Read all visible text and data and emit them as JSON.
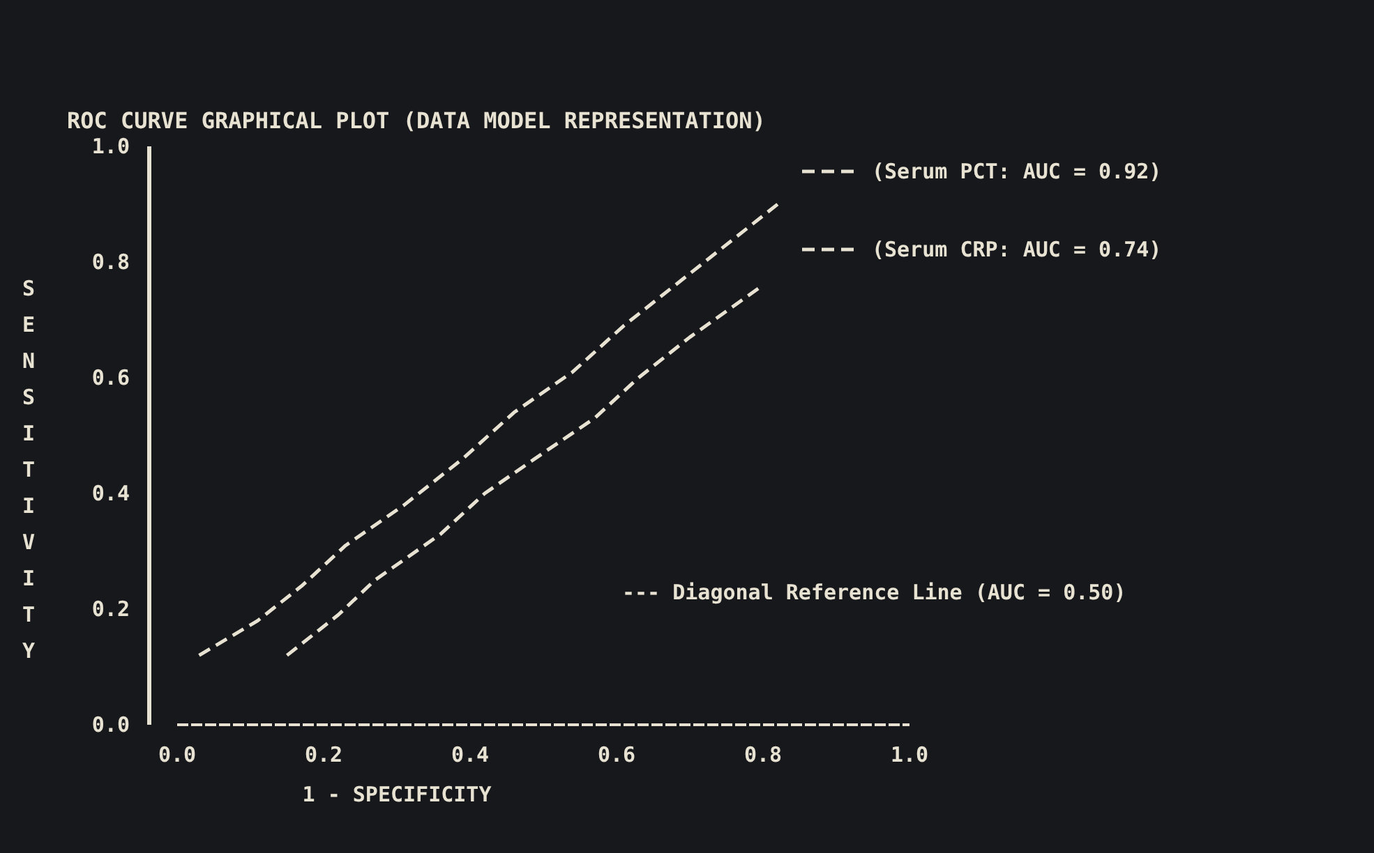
{
  "chart_data": {
    "type": "line",
    "title": "ROC CURVE GRAPHICAL PLOT (DATA MODEL REPRESENTATION)",
    "xlabel": "1 - SPECIFICITY",
    "ylabel": "SENSITIVITY",
    "xlim": [
      0,
      1
    ],
    "ylim": [
      0,
      1
    ],
    "xticks": [
      {
        "value": 0,
        "label": "0.0"
      },
      0.2,
      0.4,
      0.6,
      0.8,
      {
        "value": 1,
        "label": "1.0"
      }
    ],
    "yticks": [
      {
        "value": 0,
        "label": "0.0"
      },
      0.2,
      0.4,
      0.6,
      0.8,
      {
        "value": 1,
        "label": "1.0"
      }
    ],
    "grid": false,
    "legend": "top right",
    "marker": "none",
    "line_style": "dashed",
    "annotations": [
      "--- Diagonal Reference Line (AUC = 0.50)"
    ],
    "series": [
      {
        "name": "(Serum PCT: AUC = 0.92)",
        "color": "#e8e2d2",
        "x": [
          0.03,
          0.11,
          0.17,
          0.23,
          0.31,
          0.39,
          0.46,
          0.54,
          0.61,
          0.68,
          0.75,
          0.82
        ],
        "values": [
          0.12,
          0.18,
          0.24,
          0.31,
          0.38,
          0.46,
          0.54,
          0.61,
          0.69,
          0.76,
          0.83,
          0.9
        ]
      },
      {
        "name": "(Serum CRP: AUC = 0.74)",
        "color": "#e8e2d2",
        "x": [
          0.15,
          0.22,
          0.27,
          0.36,
          0.42,
          0.5,
          0.57,
          0.63,
          0.7,
          0.8
        ],
        "values": [
          0.12,
          0.19,
          0.25,
          0.33,
          0.4,
          0.47,
          0.53,
          0.6,
          0.67,
          0.76
        ]
      }
    ]
  }
}
